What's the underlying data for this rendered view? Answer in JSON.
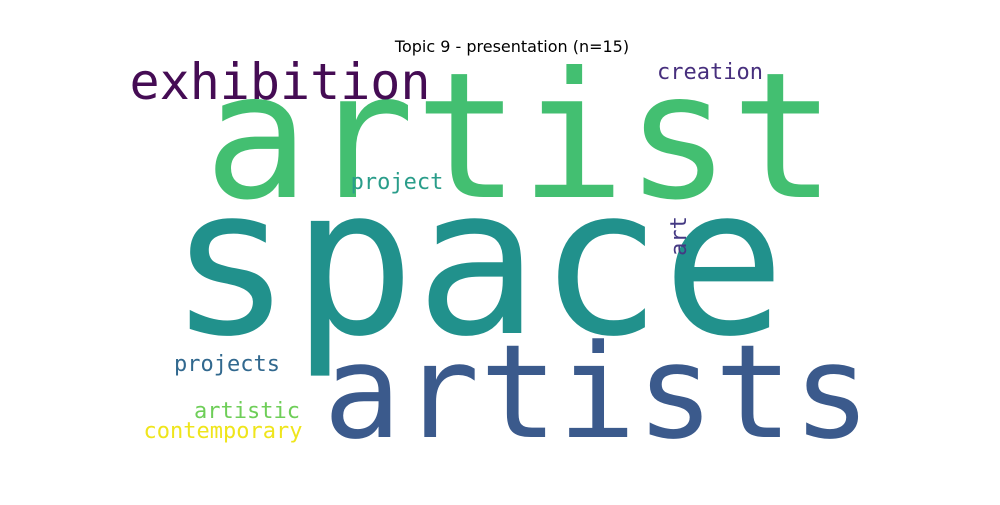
{
  "chart_data": {
    "type": "wordcloud",
    "title": "Topic 9 - presentation (n=15)",
    "words": [
      {
        "text": "space",
        "color": "#21918c"
      },
      {
        "text": "artist",
        "color": "#43bf71"
      },
      {
        "text": "artists",
        "color": "#3b5a8c"
      },
      {
        "text": "exhibition",
        "color": "#450c54"
      },
      {
        "text": "creation",
        "color": "#472f7d"
      },
      {
        "text": "project",
        "color": "#2a9d8a"
      },
      {
        "text": "art",
        "color": "#443983"
      },
      {
        "text": "projects",
        "color": "#31688e"
      },
      {
        "text": "artistic",
        "color": "#6ece58"
      },
      {
        "text": "contemporary",
        "color": "#efe51c"
      }
    ]
  }
}
